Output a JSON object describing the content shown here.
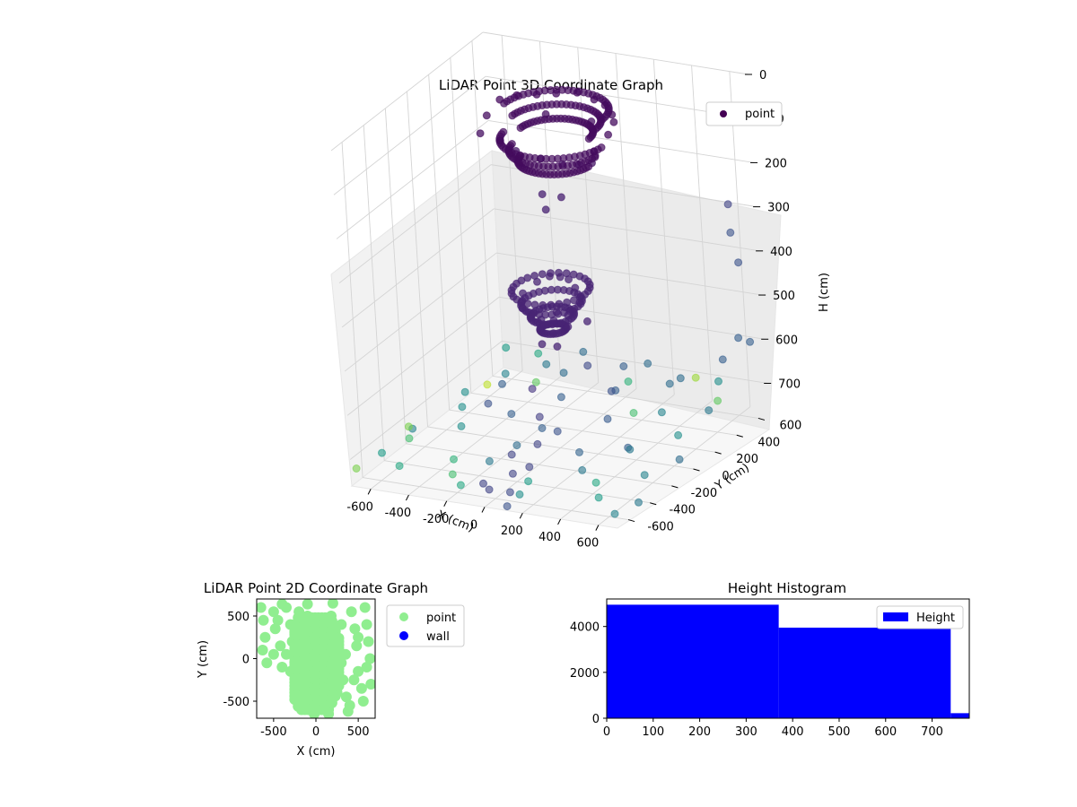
{
  "chart_data": [
    {
      "type": "scatter",
      "title": "LiDAR Point 3D Coordinate Graph",
      "xlabel": "X (cm)",
      "ylabel": "Y (cm)",
      "zlabel": "H (cm)",
      "xticks": [
        -600,
        -400,
        -200,
        0,
        200,
        400,
        600
      ],
      "yticks": [
        -600,
        -400,
        -200,
        0,
        200,
        400,
        600
      ],
      "zticks": [
        0,
        100,
        200,
        300,
        400,
        500,
        600,
        700
      ],
      "xlim": [
        -700,
        700
      ],
      "ylim": [
        -700,
        700
      ],
      "zlim": [
        0,
        760
      ],
      "z_inverted": true,
      "grid": true,
      "legend": {
        "position": "top-right",
        "entries": [
          {
            "label": "point",
            "color": "#440154"
          }
        ]
      },
      "colormap": "viridis",
      "dome_ring_points": [
        [
          -300,
          150,
          20
        ],
        [
          -250,
          220,
          20
        ],
        [
          -180,
          280,
          25
        ],
        [
          -100,
          320,
          25
        ],
        [
          0,
          340,
          20
        ],
        [
          100,
          320,
          25
        ],
        [
          180,
          280,
          25
        ],
        [
          250,
          220,
          30
        ],
        [
          300,
          150,
          30
        ],
        [
          320,
          60,
          40
        ],
        [
          -320,
          60,
          40
        ],
        [
          -300,
          -40,
          60
        ],
        [
          300,
          -40,
          60
        ],
        [
          -200,
          100,
          120
        ],
        [
          -100,
          150,
          140
        ],
        [
          0,
          170,
          150
        ],
        [
          100,
          150,
          140
        ],
        [
          200,
          100,
          120
        ],
        [
          -250,
          50,
          90
        ],
        [
          250,
          50,
          90
        ],
        [
          120,
          250,
          60
        ],
        [
          -120,
          250,
          60
        ],
        [
          50,
          60,
          200
        ],
        [
          -50,
          60,
          200
        ],
        [
          0,
          0,
          220
        ]
      ],
      "dome_points": [
        [
          -150,
          0,
          420
        ],
        [
          -100,
          50,
          400
        ],
        [
          -50,
          80,
          390
        ],
        [
          0,
          90,
          390
        ],
        [
          50,
          80,
          390
        ],
        [
          100,
          50,
          400
        ],
        [
          150,
          0,
          420
        ],
        [
          120,
          -60,
          440
        ],
        [
          60,
          -90,
          450
        ],
        [
          0,
          -100,
          450
        ],
        [
          -60,
          -90,
          450
        ],
        [
          -120,
          -60,
          440
        ],
        [
          -80,
          0,
          480
        ],
        [
          0,
          0,
          500
        ],
        [
          80,
          0,
          480
        ],
        [
          -40,
          -40,
          520
        ],
        [
          40,
          -40,
          520
        ],
        [
          0,
          40,
          460
        ],
        [
          -160,
          40,
          470
        ],
        [
          160,
          40,
          470
        ]
      ],
      "scatter_points": [
        [
          -650,
          -500,
          720,
          0.55
        ],
        [
          -600,
          -300,
          700,
          0.45
        ],
        [
          -550,
          100,
          690,
          0.5
        ],
        [
          -500,
          -600,
          720,
          0.6
        ],
        [
          -450,
          300,
          680,
          0.45
        ],
        [
          -400,
          -200,
          700,
          0.5
        ],
        [
          -350,
          500,
          690,
          0.4
        ],
        [
          -300,
          -450,
          720,
          0.65
        ],
        [
          -250,
          0,
          700,
          0.3
        ],
        [
          -200,
          400,
          680,
          0.35
        ],
        [
          -150,
          -650,
          730,
          0.6
        ],
        [
          -100,
          200,
          690,
          0.3
        ],
        [
          -50,
          -300,
          700,
          0.35
        ],
        [
          0,
          600,
          690,
          0.3
        ],
        [
          50,
          -100,
          700,
          0.25
        ],
        [
          100,
          350,
          690,
          0.3
        ],
        [
          150,
          -550,
          720,
          0.55
        ],
        [
          200,
          100,
          700,
          0.28
        ],
        [
          250,
          -250,
          705,
          0.32
        ],
        [
          300,
          500,
          690,
          0.35
        ],
        [
          350,
          -400,
          710,
          0.4
        ],
        [
          400,
          250,
          700,
          0.45
        ],
        [
          450,
          -150,
          700,
          0.3
        ],
        [
          500,
          600,
          690,
          0.5
        ],
        [
          550,
          -600,
          720,
          0.55
        ],
        [
          600,
          50,
          700,
          0.5
        ],
        [
          650,
          -350,
          710,
          0.45
        ],
        [
          -620,
          600,
          690,
          0.55
        ],
        [
          -480,
          -50,
          690,
          0.5
        ],
        [
          -380,
          150,
          670,
          0.3
        ],
        [
          -280,
          -150,
          650,
          0.25
        ],
        [
          -180,
          550,
          660,
          0.35
        ],
        [
          -80,
          -500,
          700,
          0.4
        ],
        [
          20,
          250,
          620,
          0.22
        ],
        [
          120,
          -350,
          640,
          0.3
        ],
        [
          220,
          450,
          640,
          0.35
        ],
        [
          320,
          -50,
          600,
          0.25
        ],
        [
          420,
          400,
          650,
          0.35
        ],
        [
          520,
          -250,
          680,
          0.4
        ],
        [
          620,
          300,
          690,
          0.4
        ],
        [
          -560,
          -400,
          700,
          0.7
        ],
        [
          -420,
          550,
          680,
          0.6
        ],
        [
          -320,
          350,
          700,
          0.75
        ],
        [
          -220,
          -600,
          720,
          0.7
        ],
        [
          80,
          500,
          700,
          0.65
        ],
        [
          280,
          200,
          700,
          0.7
        ],
        [
          480,
          -500,
          710,
          0.6
        ],
        [
          580,
          450,
          700,
          0.75
        ],
        [
          -680,
          -200,
          720,
          0.8
        ],
        [
          380,
          600,
          690,
          0.85
        ],
        [
          -520,
          250,
          700,
          0.9
        ],
        [
          160,
          -650,
          730,
          0.5
        ],
        [
          0,
          -650,
          730,
          0.2
        ],
        [
          40,
          -500,
          720,
          0.2
        ],
        [
          -20,
          -400,
          700,
          0.2
        ],
        [
          60,
          -300,
          690,
          0.2
        ],
        [
          20,
          -200,
          650,
          0.18
        ],
        [
          -40,
          -150,
          600,
          0.15
        ],
        [
          80,
          -600,
          740,
          0.22
        ],
        [
          120,
          -700,
          750,
          0.25
        ],
        [
          -60,
          -600,
          730,
          0.2
        ],
        [
          100,
          -450,
          710,
          0.2
        ],
        [
          650,
          650,
          600,
          0.3
        ],
        [
          680,
          500,
          560,
          0.3
        ],
        [
          620,
          640,
          420,
          0.25
        ],
        [
          600,
          620,
          350,
          0.25
        ],
        [
          560,
          680,
          300,
          0.2
        ],
        [
          500,
          650,
          650,
          0.3
        ],
        [
          690,
          -100,
          720,
          0.35
        ],
        [
          700,
          -500,
          740,
          0.4
        ],
        [
          660,
          -650,
          740,
          0.45
        ],
        [
          -700,
          -650,
          730,
          0.8
        ]
      ]
    },
    {
      "type": "scatter",
      "title": "LiDAR Point 2D Coordinate Graph",
      "xlabel": "X (cm)",
      "ylabel": "Y (cm)",
      "xticks": [
        -500,
        0,
        500
      ],
      "yticks": [
        -500,
        0,
        500
      ],
      "xlim": [
        -700,
        700
      ],
      "ylim": [
        -700,
        700
      ],
      "legend": {
        "position": "outside-right",
        "entries": [
          {
            "label": "point",
            "color": "#90ee90"
          },
          {
            "label": "wall",
            "color": "#0000ff"
          }
        ]
      },
      "series": [
        {
          "name": "point",
          "color": "#90ee90",
          "points": [
            [
              -650,
              600
            ],
            [
              -620,
              450
            ],
            [
              -600,
              250
            ],
            [
              -630,
              100
            ],
            [
              -580,
              -50
            ],
            [
              -500,
              550
            ],
            [
              -480,
              350
            ],
            [
              -420,
              150
            ],
            [
              -400,
              -100
            ],
            [
              -350,
              600
            ],
            [
              -300,
              400
            ],
            [
              -280,
              200
            ],
            [
              -250,
              -50
            ],
            [
              -230,
              -250
            ],
            [
              -200,
              550
            ],
            [
              -150,
              350
            ],
            [
              -120,
              100
            ],
            [
              -100,
              -150
            ],
            [
              -80,
              -350
            ],
            [
              -60,
              -500
            ],
            [
              -20,
              -650
            ],
            [
              0,
              450
            ],
            [
              20,
              250
            ],
            [
              50,
              50
            ],
            [
              80,
              -100
            ],
            [
              100,
              -300
            ],
            [
              120,
              -550
            ],
            [
              150,
              -650
            ],
            [
              180,
              500
            ],
            [
              220,
              300
            ],
            [
              260,
              150
            ],
            [
              300,
              -50
            ],
            [
              320,
              -250
            ],
            [
              360,
              -450
            ],
            [
              380,
              -620
            ],
            [
              420,
              550
            ],
            [
              460,
              350
            ],
            [
              480,
              150
            ],
            [
              500,
              -150
            ],
            [
              540,
              -350
            ],
            [
              560,
              -500
            ],
            [
              600,
              400
            ],
            [
              620,
              200
            ],
            [
              640,
              0
            ],
            [
              650,
              -300
            ],
            [
              580,
              600
            ],
            [
              200,
              650
            ],
            [
              -100,
              640
            ],
            [
              -400,
              640
            ],
            [
              0,
              -200
            ],
            [
              -200,
              150
            ],
            [
              150,
              -200
            ],
            [
              -50,
              300
            ],
            [
              250,
              -400
            ],
            [
              -150,
              -300
            ],
            [
              350,
              50
            ],
            [
              450,
              -250
            ],
            [
              -300,
              -150
            ],
            [
              100,
              150
            ],
            [
              -450,
              450
            ],
            [
              300,
              400
            ],
            [
              -350,
              50
            ],
            [
              400,
              -550
            ],
            [
              -250,
              300
            ],
            [
              50,
              -450
            ],
            [
              200,
              100
            ],
            [
              -100,
              500
            ],
            [
              500,
              250
            ],
            [
              -500,
              50
            ],
            [
              600,
              -100
            ]
          ]
        }
      ]
    },
    {
      "type": "bar",
      "title": "Height Histogram",
      "xticks": [
        0,
        100,
        200,
        300,
        400,
        500,
        600,
        700
      ],
      "yticks": [
        0,
        2000,
        4000
      ],
      "xlim": [
        0,
        780
      ],
      "ylim": [
        0,
        5200
      ],
      "legend": {
        "position": "top-right",
        "entries": [
          {
            "label": "Height",
            "color": "#0000ff"
          }
        ]
      },
      "series": [
        {
          "name": "Height",
          "color": "#0000ff",
          "bins": [
            {
              "start": 0,
              "end": 370,
              "value": 4950
            },
            {
              "start": 370,
              "end": 740,
              "value": 3950
            },
            {
              "start": 740,
              "end": 780,
              "value": 220
            }
          ]
        }
      ]
    }
  ]
}
